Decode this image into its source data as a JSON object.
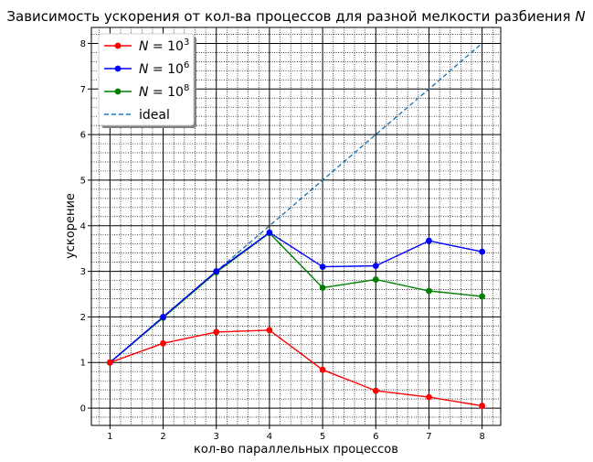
{
  "chart_data": {
    "type": "line",
    "title": "Зависимость ускорения от кол-ва процессов для разной мелкости разбиения N",
    "xlabel": "кол-во параллельных процессов",
    "ylabel": "ускорение",
    "xlim": [
      0.65,
      8.35
    ],
    "ylim": [
      -0.38,
      8.35
    ],
    "x": [
      1,
      2,
      3,
      4,
      5,
      6,
      7,
      8
    ],
    "xticks": [
      "1",
      "2",
      "3",
      "4",
      "5",
      "6",
      "7",
      "8"
    ],
    "yticks": [
      "0",
      "1",
      "2",
      "3",
      "4",
      "5",
      "6",
      "7",
      "8"
    ],
    "grid": "major and minor",
    "legend_position": "top-left",
    "series": [
      {
        "name": "N = 10",
        "exp": "3",
        "color": "#ff0000",
        "style": "solid",
        "marker": true,
        "values": [
          1.0,
          1.42,
          1.67,
          1.71,
          0.84,
          0.38,
          0.24,
          0.05
        ]
      },
      {
        "name": "N = 10",
        "exp": "6",
        "color": "#0000ff",
        "style": "solid",
        "marker": true,
        "values": [
          1.0,
          2.0,
          3.0,
          3.85,
          3.1,
          3.12,
          3.67,
          3.43
        ]
      },
      {
        "name": "N = 10",
        "exp": "8",
        "color": "#008000",
        "style": "solid",
        "marker": true,
        "values": [
          1.0,
          1.98,
          2.98,
          3.84,
          2.64,
          2.82,
          2.57,
          2.45
        ]
      },
      {
        "name": "ideal",
        "exp": "",
        "color": "#1f77b4",
        "style": "dashed",
        "marker": false,
        "values": [
          1,
          2,
          3,
          4,
          5,
          6,
          7,
          8
        ]
      }
    ]
  }
}
